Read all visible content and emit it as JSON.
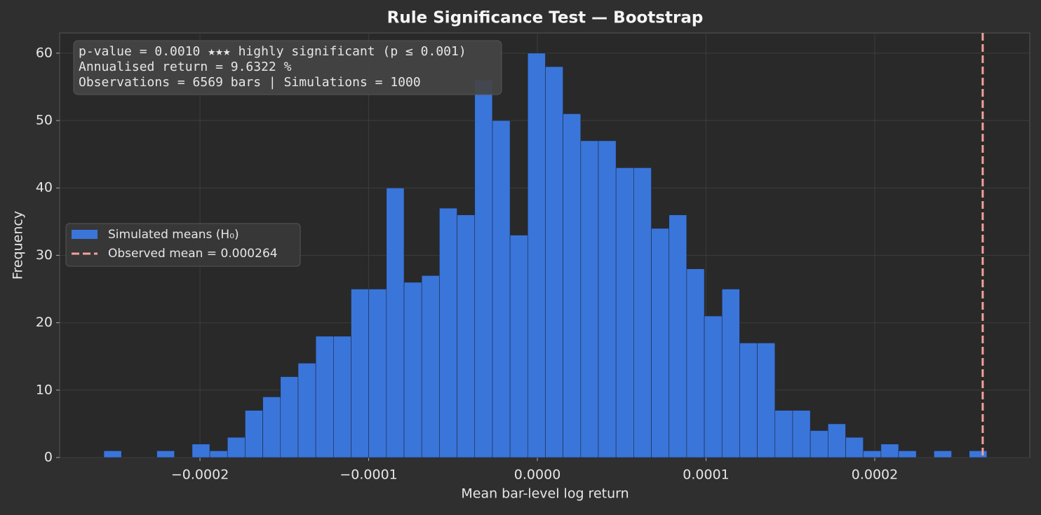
{
  "chart_data": {
    "type": "histogram",
    "title": "Rule Significance Test — Bootstrap",
    "xlabel": "Mean bar-level log return",
    "ylabel": "Frequency",
    "bins": [
      -0.000257,
      -0.00024653,
      -0.00023606,
      -0.00022559,
      -0.00021512,
      -0.00020465,
      -0.00019418,
      -0.00018371,
      -0.00017324,
      -0.00016277,
      -0.0001523,
      -0.00014183,
      -0.00013136,
      -0.00012089,
      -0.00011042,
      -9.995e-05,
      -8.948e-05,
      -7.901e-05,
      -6.854e-05,
      -5.807e-05,
      -4.76e-05,
      -3.713e-05,
      -2.666e-05,
      -1.619e-05,
      -5.72e-06,
      4.75e-06,
      1.522e-05,
      2.569e-05,
      3.616e-05,
      4.663e-05,
      5.71e-05,
      6.757e-05,
      7.804e-05,
      8.851e-05,
      9.898e-05,
      0.00010945,
      0.00011992,
      0.00013039,
      0.00014086,
      0.00015133,
      0.0001618,
      0.00017227,
      0.00018274,
      0.00019321,
      0.00020368,
      0.00021415,
      0.00022462,
      0.00023509,
      0.00024556,
      0.00025603,
      0.0002665
    ],
    "series": [
      {
        "name": "Simulated means (H₀)",
        "color": "#3a75da",
        "values": [
          1,
          0,
          0,
          1,
          0,
          2,
          1,
          3,
          7,
          9,
          12,
          14,
          18,
          18,
          25,
          25,
          40,
          26,
          27,
          37,
          36,
          56,
          50,
          33,
          60,
          58,
          51,
          47,
          47,
          43,
          43,
          34,
          36,
          28,
          21,
          25,
          17,
          17,
          7,
          7,
          4,
          5,
          3,
          1,
          2,
          1,
          0,
          1,
          0,
          1
        ]
      }
    ],
    "observed": {
      "value": 0.000264,
      "label": "Observed mean = 0.000264",
      "color": "#f4a19b"
    },
    "xlim": [
      -0.0002832,
      0.0002919
    ],
    "ylim": [
      0,
      63
    ],
    "xticks": [
      {
        "value": -0.0002,
        "label": "−0.0002"
      },
      {
        "value": -0.0001,
        "label": "−0.0001"
      },
      {
        "value": 0,
        "label": "0.0000"
      },
      {
        "value": 0.0001,
        "label": "0.0001"
      },
      {
        "value": 0.0002,
        "label": "0.0002"
      }
    ],
    "yticks": [
      0,
      10,
      20,
      30,
      40,
      50,
      60
    ],
    "grid": true,
    "legend": "center left",
    "annotation": [
      "p-value = 0.0010  ★★★  highly significant (p ≤ 0.001)",
      "Annualised return = 9.6322 %",
      "Observations = 6569 bars   |   Simulations = 1000"
    ]
  }
}
